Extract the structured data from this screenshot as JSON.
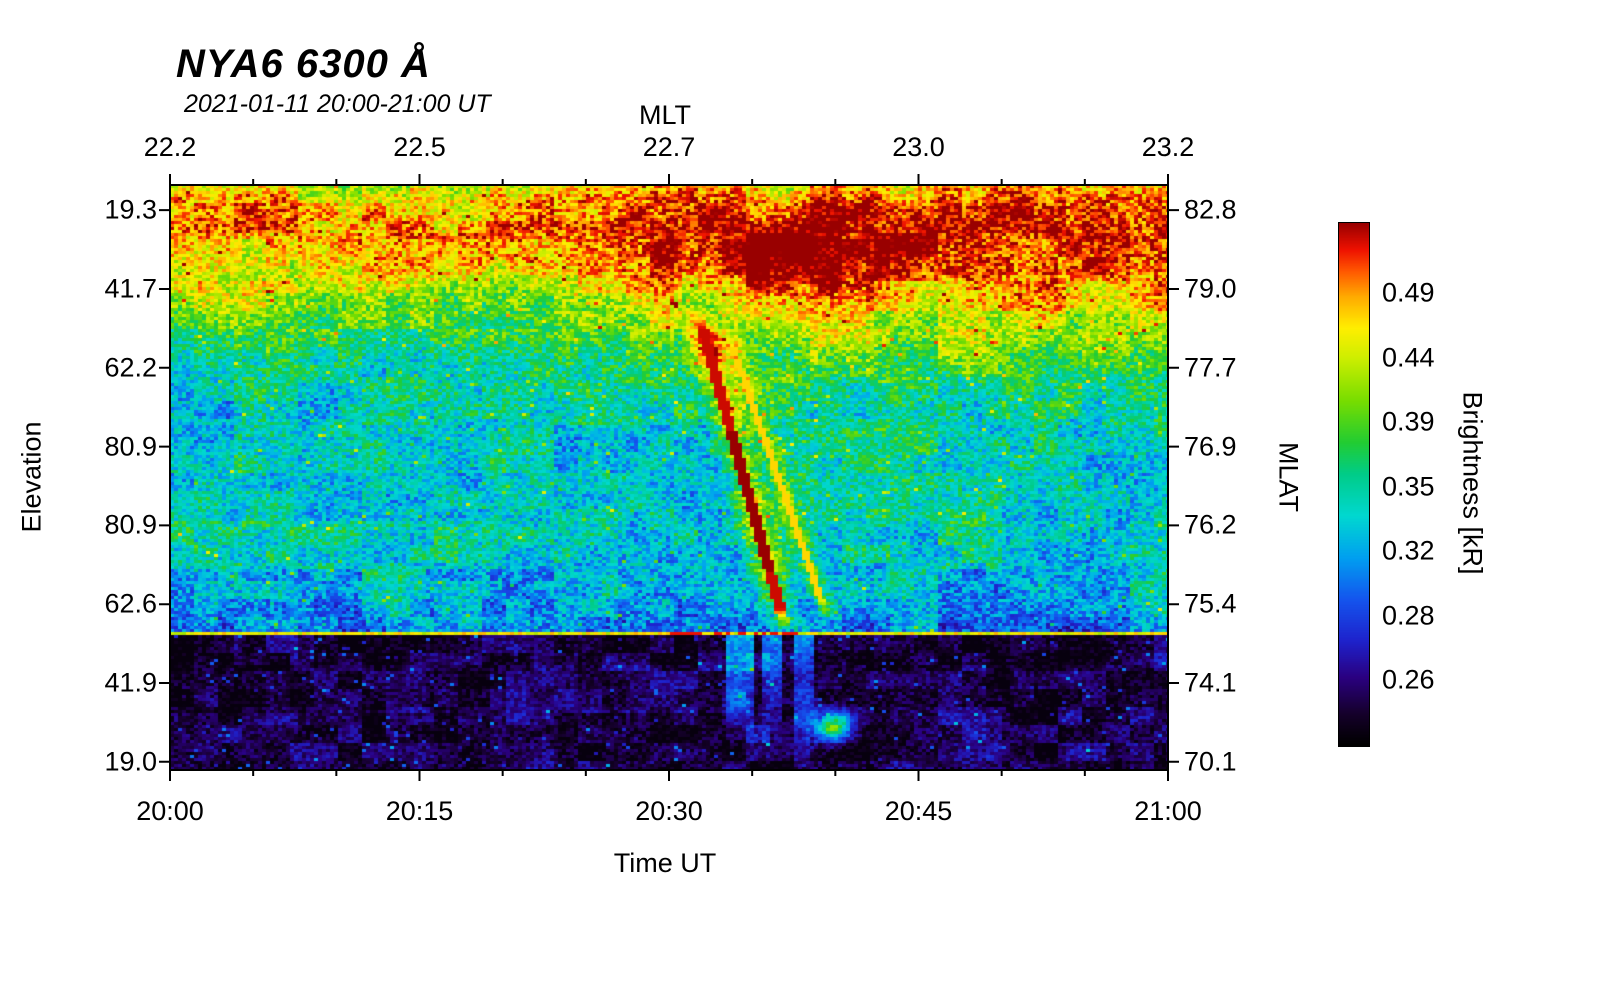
{
  "chart_data": {
    "type": "heatmap",
    "title": "NYA6 6300 Å",
    "subtitle": "2021-01-11 20:00-21:00 UT",
    "axes": {
      "top": {
        "label": "MLT",
        "ticks": [
          "22.2",
          "22.5",
          "22.7",
          "23.0",
          "23.2"
        ]
      },
      "bottom": {
        "label": "Time UT",
        "ticks": [
          "20:00",
          "20:15",
          "20:30",
          "20:45",
          "21:00"
        ]
      },
      "left": {
        "label": "Elevation",
        "ticks": [
          "19.3",
          "41.7",
          "62.2",
          "80.9",
          "80.9",
          "62.6",
          "41.9",
          "19.0"
        ]
      },
      "right": {
        "label": "MLAT",
        "ticks": [
          "82.8",
          "79.0",
          "77.7",
          "76.9",
          "76.2",
          "75.4",
          "74.1",
          "70.1"
        ]
      }
    },
    "colorbar": {
      "label": "Brightness [kR]",
      "ticks": [
        "0.49",
        "0.44",
        "0.39",
        "0.35",
        "0.32",
        "0.28",
        "0.26"
      ]
    },
    "x_range_ut": [
      "20:00",
      "21:00"
    ],
    "grid_on": false,
    "field": {
      "colormap": [
        {
          "v": 0.0,
          "c": "#000000"
        },
        {
          "v": 0.06,
          "c": "#15002a"
        },
        {
          "v": 0.13,
          "c": "#2a0080"
        },
        {
          "v": 0.2,
          "c": "#1e22cc"
        },
        {
          "v": 0.28,
          "c": "#1455ee"
        },
        {
          "v": 0.36,
          "c": "#00a0f0"
        },
        {
          "v": 0.44,
          "c": "#00d8d0"
        },
        {
          "v": 0.52,
          "c": "#00cc88"
        },
        {
          "v": 0.58,
          "c": "#22cc33"
        },
        {
          "v": 0.66,
          "c": "#77dd00"
        },
        {
          "v": 0.74,
          "c": "#ccee00"
        },
        {
          "v": 0.8,
          "c": "#ffee00"
        },
        {
          "v": 0.86,
          "c": "#ffaa00"
        },
        {
          "v": 0.91,
          "c": "#ff5500"
        },
        {
          "v": 0.95,
          "c": "#ee1100"
        },
        {
          "v": 1.0,
          "c": "#990000"
        }
      ],
      "profile_left": [
        [
          0,
          0.74
        ],
        [
          0.035,
          0.84
        ],
        [
          0.075,
          0.88
        ],
        [
          0.125,
          0.82
        ],
        [
          0.175,
          0.72
        ],
        [
          0.235,
          0.61
        ],
        [
          0.3,
          0.5
        ],
        [
          0.38,
          0.43
        ],
        [
          0.48,
          0.45
        ],
        [
          0.56,
          0.46
        ],
        [
          0.64,
          0.42
        ],
        [
          0.71,
          0.39
        ],
        [
          0.75,
          0.35
        ],
        [
          0.765,
          0.33
        ]
      ],
      "profile_right": [
        [
          0,
          0.8
        ],
        [
          0.04,
          0.93
        ],
        [
          0.1,
          0.96
        ],
        [
          0.15,
          0.9
        ],
        [
          0.2,
          0.79
        ],
        [
          0.26,
          0.67
        ],
        [
          0.32,
          0.56
        ],
        [
          0.4,
          0.48
        ],
        [
          0.5,
          0.46
        ],
        [
          0.6,
          0.45
        ],
        [
          0.68,
          0.41
        ],
        [
          0.73,
          0.37
        ],
        [
          0.765,
          0.31
        ]
      ],
      "mix": [
        0.38,
        0.3
      ],
      "noise": {
        "fine": 0.11,
        "blotch": 0.06,
        "coarse": 0.06,
        "spike_p": 0.985,
        "spike_add": 0.2
      },
      "hot_blob": {
        "x": 0.6,
        "t": 0.14,
        "rx": 0.08,
        "ry": 0.06,
        "add": 0.15
      },
      "horizon": {
        "t": 0.768,
        "base": 0.78,
        "red_from": 0.5,
        "red_to": 0.63,
        "red_v": 0.95
      },
      "streaks": [
        {
          "x0": 0.527,
          "t0": 0.205,
          "x1": 0.618,
          "t1": 0.765,
          "core": 0.0055,
          "halo": 0.025,
          "coreV": 0.97,
          "haloAdd": 0.32,
          "bright": [
            0.42,
            0.66
          ],
          "brightV": 1.0
        },
        {
          "x0": 0.556,
          "t0": 0.24,
          "x1": 0.66,
          "t1": 0.745,
          "core": 0.0035,
          "halo": 0.016,
          "coreV": 0.82,
          "haloAdd": 0.2
        }
      ],
      "sub_columns": [
        {
          "x": 0.57,
          "w": 0.014,
          "add": 0.34
        },
        {
          "x": 0.603,
          "w": 0.01,
          "add": 0.27
        },
        {
          "x": 0.636,
          "w": 0.011,
          "add": 0.23
        }
      ],
      "sub_blob": {
        "x": 0.664,
        "t": 0.925,
        "rx": 0.013,
        "ry": 0.018,
        "v": 0.62
      },
      "dark": {
        "base": 0.065,
        "speckle_p": 0.965,
        "speckle_v": 0.24
      }
    }
  }
}
